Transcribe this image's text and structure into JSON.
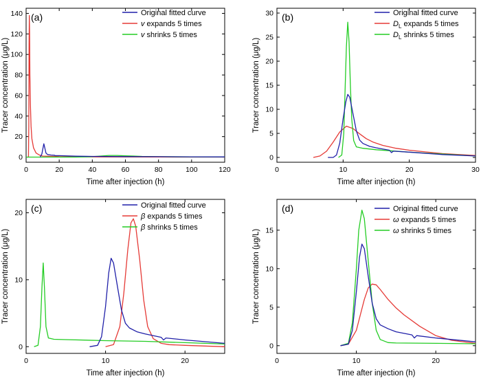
{
  "figure": {
    "colors": {
      "original": "#1f1fa8",
      "expand": "#e53935",
      "shrink": "#22cc22"
    }
  },
  "chart_data": [
    {
      "id": "a",
      "panel_label": "(a)",
      "type": "line",
      "xlabel": "Time after injection (h)",
      "ylabel": "Tracer concentration (μg/L)",
      "xlim": [
        0,
        120
      ],
      "ylim": [
        -5,
        145
      ],
      "xticks": [
        0,
        20,
        40,
        60,
        80,
        100,
        120
      ],
      "yticks": [
        0,
        20,
        40,
        60,
        80,
        100,
        120,
        140
      ],
      "legend": [
        {
          "series": "original",
          "parts": [
            {
              "t": "Original fitted curve",
              "i": false
            }
          ]
        },
        {
          "series": "expand",
          "parts": [
            {
              "t": "v",
              "i": true
            },
            {
              "t": " expands 5 times",
              "i": false
            }
          ]
        },
        {
          "series": "shrink",
          "parts": [
            {
              "t": "v",
              "i": true
            },
            {
              "t": " shrinks 5 times",
              "i": false
            }
          ]
        }
      ],
      "series": [
        {
          "key": "original",
          "x": [
            8.5,
            9.5,
            10.2,
            10.7,
            11.3,
            12,
            13,
            15,
            17.2,
            17.5,
            20,
            30,
            40,
            60,
            80,
            100,
            120
          ],
          "y": [
            0,
            3,
            9,
            13,
            9,
            4,
            2.5,
            2,
            1.8,
            1.4,
            1.4,
            0.9,
            0.7,
            0.5,
            0.4,
            0.3,
            0.2
          ]
        },
        {
          "key": "expand",
          "x": [
            1.4,
            1.6,
            1.8,
            1.95,
            2.1,
            2.3,
            2.6,
            3,
            3.5,
            4.5,
            6,
            8,
            10,
            20,
            40,
            80,
            120
          ],
          "y": [
            0,
            30,
            110,
            138,
            120,
            80,
            50,
            30,
            18,
            9,
            4,
            2,
            1,
            0.5,
            0.2,
            0.1,
            0
          ]
        },
        {
          "key": "shrink",
          "x": [
            0,
            20,
            30,
            38,
            45,
            50,
            55,
            60,
            65,
            70,
            80,
            100,
            120
          ],
          "y": [
            0,
            0,
            0,
            0.3,
            1,
            1.6,
            1.6,
            1.3,
            1,
            0.7,
            0.4,
            0.2,
            0.1
          ]
        }
      ]
    },
    {
      "id": "b",
      "panel_label": "(b)",
      "type": "line",
      "xlabel": "Time after injection (h)",
      "ylabel": "Tracer concentration (μg/L)",
      "xlim": [
        0,
        30
      ],
      "ylim": [
        -1,
        31
      ],
      "xticks": [
        0,
        10,
        20,
        30
      ],
      "yticks": [
        0,
        5,
        10,
        15,
        20,
        25,
        30
      ],
      "legend": [
        {
          "series": "original",
          "parts": [
            {
              "t": "Original fitted curve",
              "i": false
            }
          ]
        },
        {
          "series": "expand",
          "parts": [
            {
              "t": "D",
              "i": true
            },
            {
              "t": "L",
              "i": false,
              "sub": true
            },
            {
              "t": " expands 5 times",
              "i": false
            }
          ]
        },
        {
          "series": "shrink",
          "parts": [
            {
              "t": "D",
              "i": true
            },
            {
              "t": "L",
              "i": false,
              "sub": true
            },
            {
              "t": " shrinks 5 times",
              "i": false
            }
          ]
        }
      ],
      "series": [
        {
          "key": "original",
          "x": [
            7.7,
            8.5,
            9,
            9.5,
            10,
            10.4,
            10.7,
            11,
            11.5,
            12,
            12.5,
            13,
            14,
            15,
            17,
            17.3,
            17.6,
            20,
            25,
            30
          ],
          "y": [
            0,
            0,
            0.5,
            3,
            8,
            11.5,
            13.1,
            12.5,
            9,
            5.5,
            3.6,
            2.9,
            2.3,
            2.0,
            1.5,
            1.0,
            1.3,
            1.1,
            0.6,
            0.3
          ]
        },
        {
          "key": "expand",
          "x": [
            5.5,
            6.5,
            7.5,
            8.5,
            9.5,
            10.5,
            11.5,
            12.5,
            13.5,
            14.5,
            16,
            18,
            20,
            25,
            30
          ],
          "y": [
            0,
            0.3,
            1.3,
            3.2,
            5.3,
            6.5,
            6.0,
            4.9,
            3.9,
            3.2,
            2.5,
            1.9,
            1.5,
            0.8,
            0.4
          ]
        },
        {
          "key": "shrink",
          "x": [
            9.3,
            9.8,
            10.1,
            10.3,
            10.5,
            10.7,
            10.9,
            11.1,
            11.3,
            11.6,
            12,
            13,
            15,
            20,
            30
          ],
          "y": [
            0,
            0.5,
            5,
            14,
            23,
            28.1,
            24,
            15,
            8,
            3.5,
            2.2,
            1.9,
            1.6,
            1.1,
            0.3
          ]
        }
      ]
    },
    {
      "id": "c",
      "panel_label": "(c)",
      "type": "line",
      "xlabel": "Time after injection (h)",
      "ylabel": "Tracer concentration (μg/L)",
      "xlim": [
        0,
        25
      ],
      "ylim": [
        -1,
        22
      ],
      "xticks": [
        0,
        10,
        20
      ],
      "yticks": [
        0,
        10,
        20
      ],
      "legend": [
        {
          "series": "original",
          "parts": [
            {
              "t": "Original fitted curve",
              "i": false
            }
          ]
        },
        {
          "series": "expand",
          "parts": [
            {
              "t": "β",
              "i": true
            },
            {
              "t": " expands 5 times",
              "i": false
            }
          ]
        },
        {
          "series": "shrink",
          "parts": [
            {
              "t": "β",
              "i": true
            },
            {
              "t": " shrinks 5 times",
              "i": false
            }
          ]
        }
      ],
      "series": [
        {
          "key": "original",
          "x": [
            8,
            9,
            9.5,
            10,
            10.4,
            10.7,
            11,
            11.5,
            12,
            12.5,
            13,
            14,
            15,
            17,
            17.3,
            17.6,
            20,
            25
          ],
          "y": [
            0,
            0.2,
            1.5,
            6,
            11,
            13.2,
            12.5,
            9,
            5.5,
            3.5,
            2.8,
            2.2,
            1.9,
            1.4,
            1.0,
            1.3,
            1.0,
            0.5
          ]
        },
        {
          "key": "expand",
          "x": [
            10,
            11,
            11.8,
            12.3,
            12.8,
            13.2,
            13.5,
            13.8,
            14.3,
            14.8,
            15.3,
            16,
            17,
            18,
            20,
            25
          ],
          "y": [
            0,
            0.3,
            3,
            8,
            14.5,
            18.5,
            19.1,
            18,
            13,
            7,
            3,
            1.2,
            0.5,
            0.3,
            0.2,
            0
          ]
        },
        {
          "key": "shrink",
          "x": [
            1,
            1.5,
            1.8,
            2.0,
            2.15,
            2.3,
            2.5,
            2.8,
            3.5,
            5,
            10,
            15,
            20,
            25
          ],
          "y": [
            0,
            0.2,
            3,
            9,
            12.5,
            9,
            3,
            1.3,
            1.1,
            1.05,
            0.9,
            0.8,
            0.6,
            0.4
          ]
        }
      ]
    },
    {
      "id": "d",
      "panel_label": "(d)",
      "type": "line",
      "xlabel": "Time after injection (h)",
      "ylabel": "Tracer concentration (μg/L)",
      "xlim": [
        0,
        25
      ],
      "ylim": [
        -1,
        19
      ],
      "xticks": [
        0,
        10,
        20
      ],
      "yticks": [
        0,
        5,
        10,
        15
      ],
      "legend": [
        {
          "series": "original",
          "parts": [
            {
              "t": "Original fitted curve",
              "i": false
            }
          ]
        },
        {
          "series": "expand",
          "parts": [
            {
              "t": "ω",
              "i": true
            },
            {
              "t": " expands 5 times",
              "i": false
            }
          ]
        },
        {
          "series": "shrink",
          "parts": [
            {
              "t": "ω",
              "i": true
            },
            {
              "t": " shrinks 5 times",
              "i": false
            }
          ]
        }
      ],
      "series": [
        {
          "key": "original",
          "x": [
            8,
            9,
            9.5,
            10,
            10.4,
            10.7,
            11,
            11.5,
            12,
            12.5,
            13,
            14,
            15,
            17,
            17.3,
            17.6,
            20,
            25
          ],
          "y": [
            0,
            0.2,
            2,
            7,
            11.5,
            13.2,
            12.6,
            9,
            5.5,
            3.5,
            2.7,
            2.2,
            1.8,
            1.4,
            1.0,
            1.3,
            1.0,
            0.5
          ]
        },
        {
          "key": "expand",
          "x": [
            8,
            9,
            10,
            10.5,
            11,
            11.5,
            12,
            12.5,
            13,
            14,
            15,
            16,
            18,
            20,
            22,
            25
          ],
          "y": [
            0,
            0.2,
            2,
            4,
            6,
            7.5,
            8,
            7.9,
            7.3,
            6,
            4.9,
            4,
            2.5,
            1.3,
            0.7,
            0.3
          ]
        },
        {
          "key": "shrink",
          "x": [
            8,
            9,
            9.5,
            10,
            10.3,
            10.7,
            11,
            11.5,
            12,
            12.5,
            13,
            14,
            15,
            20,
            25
          ],
          "y": [
            0,
            0.3,
            3,
            10,
            15,
            17.6,
            16.5,
            11,
            5.5,
            2,
            0.8,
            0.4,
            0.35,
            0.3,
            0.25
          ]
        }
      ]
    }
  ]
}
